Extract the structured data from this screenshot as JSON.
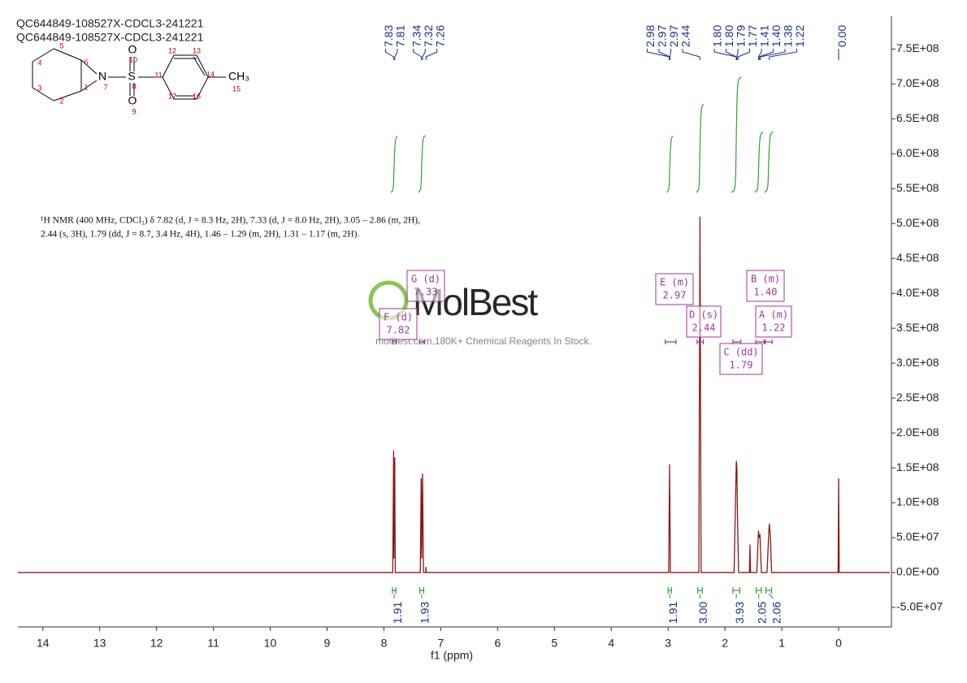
{
  "chart_data": {
    "type": "nmr",
    "titles": [
      "QC644849-108527X-CDCL3-241221",
      "QC644849-108527X-CDCL3-241221"
    ],
    "description": [
      "¹H NMR (400 MHz, CDCl₃) δ 7.82 (d, J = 8.3 Hz, 2H), 7.33 (d, J = 8.0 Hz, 2H), 3.05 – 2.86 (m, 2H),",
      "2.44 (s, 3H), 1.79 (dd, J = 8.7, 3.4 Hz, 4H), 1.46 – 1.29 (m, 2H), 1.31 – 1.17 (m, 2H)."
    ],
    "structure_atoms": [
      "O",
      "10",
      "N",
      "7",
      "S",
      "8",
      "O",
      "9",
      "CH₃",
      "15",
      "5",
      "4",
      "3",
      "2",
      "1",
      "6",
      "11",
      "12",
      "13",
      "14",
      "16",
      "17"
    ],
    "watermark": [
      "MolBest",
      "molBest.com,180K+ Chemical Reagents In Stock."
    ],
    "xlabel": "f1 (ppm)",
    "xlim": [
      14.44,
      -0.9
    ],
    "xticks": [
      14,
      13,
      12,
      11,
      10,
      9,
      8,
      7,
      6,
      5,
      4,
      3,
      2,
      1,
      0
    ],
    "ylim": [
      -78000000,
      797000000
    ],
    "yticks": [
      {
        "value": 750000000,
        "label": "7.5E+08"
      },
      {
        "value": 700000000,
        "label": "7.0E+08"
      },
      {
        "value": 650000000,
        "label": "6.5E+08"
      },
      {
        "value": 600000000,
        "label": "6.0E+08"
      },
      {
        "value": 550000000,
        "label": "5.5E+08"
      },
      {
        "value": 500000000,
        "label": "5.0E+08"
      },
      {
        "value": 450000000,
        "label": "4.5E+08"
      },
      {
        "value": 400000000,
        "label": "4.0E+08"
      },
      {
        "value": 350000000,
        "label": "3.5E+08"
      },
      {
        "value": 300000000,
        "label": "3.0E+08"
      },
      {
        "value": 250000000,
        "label": "2.5E+08"
      },
      {
        "value": 200000000,
        "label": "2.0E+08"
      },
      {
        "value": 150000000,
        "label": "1.5E+08"
      },
      {
        "value": 100000000,
        "label": "1.0E+08"
      },
      {
        "value": 50000000,
        "label": "5.0E+07"
      },
      {
        "value": 0,
        "label": "0.0E+00"
      },
      {
        "value": -50000000,
        "label": "-5.0E+07"
      }
    ],
    "color": "#8b1a1a",
    "x": [
      14.44,
      7.845,
      7.83,
      7.825,
      7.81,
      7.8,
      7.36,
      7.345,
      7.335,
      7.32,
      7.305,
      7.265,
      7.26,
      7.255,
      2.99,
      2.975,
      2.96,
      2.46,
      2.44,
      2.42,
      1.84,
      1.81,
      1.8,
      1.79,
      1.78,
      1.76,
      1.57,
      1.56,
      1.55,
      1.44,
      1.41,
      1.4,
      1.385,
      1.36,
      1.26,
      1.23,
      1.22,
      1.2,
      1.18,
      0.01,
      0,
      -0.01,
      -0.9
    ],
    "values": [
      0,
      0,
      175000000,
      20000000,
      165000000,
      0,
      0,
      135000000,
      20000000,
      142000000,
      0,
      0,
      8000000,
      0,
      0,
      155000000,
      0,
      0,
      510000000,
      0,
      0,
      120000000,
      160000000,
      150000000,
      80000000,
      0,
      0,
      40000000,
      0,
      0,
      60000000,
      50000000,
      55000000,
      0,
      0,
      55000000,
      70000000,
      50000000,
      0,
      0,
      135000000,
      0,
      0
    ],
    "peak_labels": [
      7.83,
      7.81,
      7.34,
      7.32,
      7.26,
      2.98,
      2.97,
      2.97,
      2.44,
      {
        "value": 1.8,
        "label": "1.80"
      },
      {
        "value": 1.8,
        "label": "1.80"
      },
      1.79,
      1.77,
      1.41,
      {
        "value": 1.4,
        "label": "1.40"
      },
      1.38,
      1.22,
      {
        "value": 0,
        "label": "0.00"
      }
    ],
    "integrals": [
      {
        "range": [
          7.85,
          7.79
        ],
        "value": 1.91
      },
      {
        "range": [
          7.37,
          7.3
        ],
        "value": 1.93
      },
      {
        "range": [
          3.0,
          2.94
        ],
        "value": 1.91
      },
      {
        "range": [
          2.48,
          2.4
        ],
        "value": {
          "value": 3,
          "label": "3.00"
        }
      },
      {
        "range": [
          1.86,
          1.74
        ],
        "value": 3.93
      },
      {
        "range": [
          1.45,
          1.36
        ],
        "value": 2.05
      },
      {
        "range": [
          1.28,
          1.18
        ],
        "value": 2.06
      }
    ],
    "multiplets": [
      {
        "label": "F (d)",
        "shift": 7.82,
        "range": [
          7.85,
          7.78
        ]
      },
      {
        "label": "G (d)",
        "shift": 7.33,
        "range": [
          7.37,
          7.29
        ]
      },
      {
        "label": "E (m)",
        "shift": 2.97,
        "range": [
          3.05,
          2.86
        ]
      },
      {
        "label": "D (s)",
        "shift": 2.44,
        "range": [
          2.49,
          2.38
        ]
      },
      {
        "label": "C (dd)",
        "shift": 1.79,
        "range": [
          1.86,
          1.72
        ]
      },
      {
        "label": "B (m)",
        "shift": {
          "value": 1.4,
          "label": "1.40"
        },
        "range": [
          1.46,
          1.29
        ]
      },
      {
        "label": "A (m)",
        "shift": 1.22,
        "range": [
          1.31,
          1.17
        ]
      }
    ]
  }
}
